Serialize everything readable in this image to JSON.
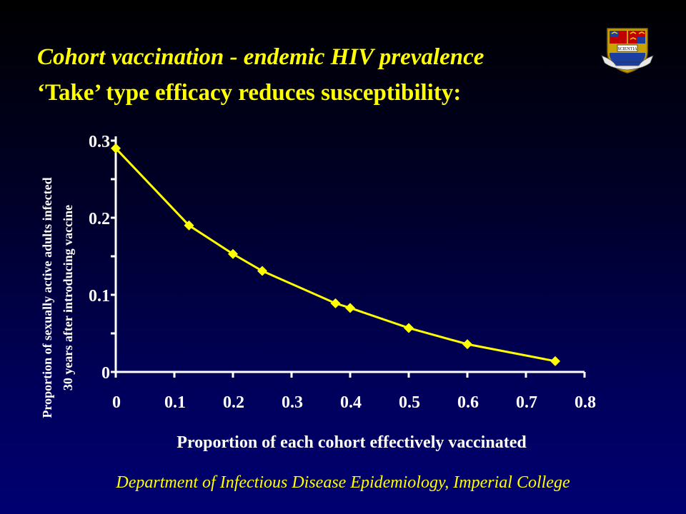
{
  "slide": {
    "title_line1": "Cohort vaccination - endemic HIV prevalence",
    "title_line2": "‘Take’ type efficacy reduces susceptibility:",
    "footer": "Department of Infectious Disease Epidemiology, Imperial College",
    "crest_motto": "SCIENTIA"
  },
  "colors": {
    "title": "#ffff00",
    "series": "#ffff00",
    "axis": "#ffffff",
    "background": "#00005a"
  },
  "chart_data": {
    "type": "line",
    "title": "",
    "xlabel": "Proportion of each cohort effectively vaccinated",
    "ylabel_lines": [
      "Proportion of sexually active adults infected",
      "30 years after introducing vaccine"
    ],
    "xlim": [
      0,
      0.8
    ],
    "ylim": [
      0,
      0.3
    ],
    "x_ticks": [
      0,
      0.1,
      0.2,
      0.3,
      0.4,
      0.5,
      0.6,
      0.7,
      0.8
    ],
    "x_tick_labels": [
      "0",
      "0.1",
      "0.2",
      "0.3",
      "0.4",
      "0.5",
      "0.6",
      "0.7",
      "0.8"
    ],
    "y_ticks": [
      0,
      0.1,
      0.2,
      0.3
    ],
    "y_tick_labels": [
      "0",
      "0.1",
      "0.2",
      "0.3"
    ],
    "y_minor_ticks": [
      0.05,
      0.15,
      0.25
    ],
    "grid": false,
    "marker": "diamond",
    "series": [
      {
        "x": [
          0,
          0.125,
          0.2,
          0.25,
          0.375,
          0.4,
          0.5,
          0.6,
          0.75
        ],
        "y": [
          0.29,
          0.19,
          0.153,
          0.131,
          0.089,
          0.083,
          0.057,
          0.036,
          0.014
        ]
      }
    ]
  }
}
